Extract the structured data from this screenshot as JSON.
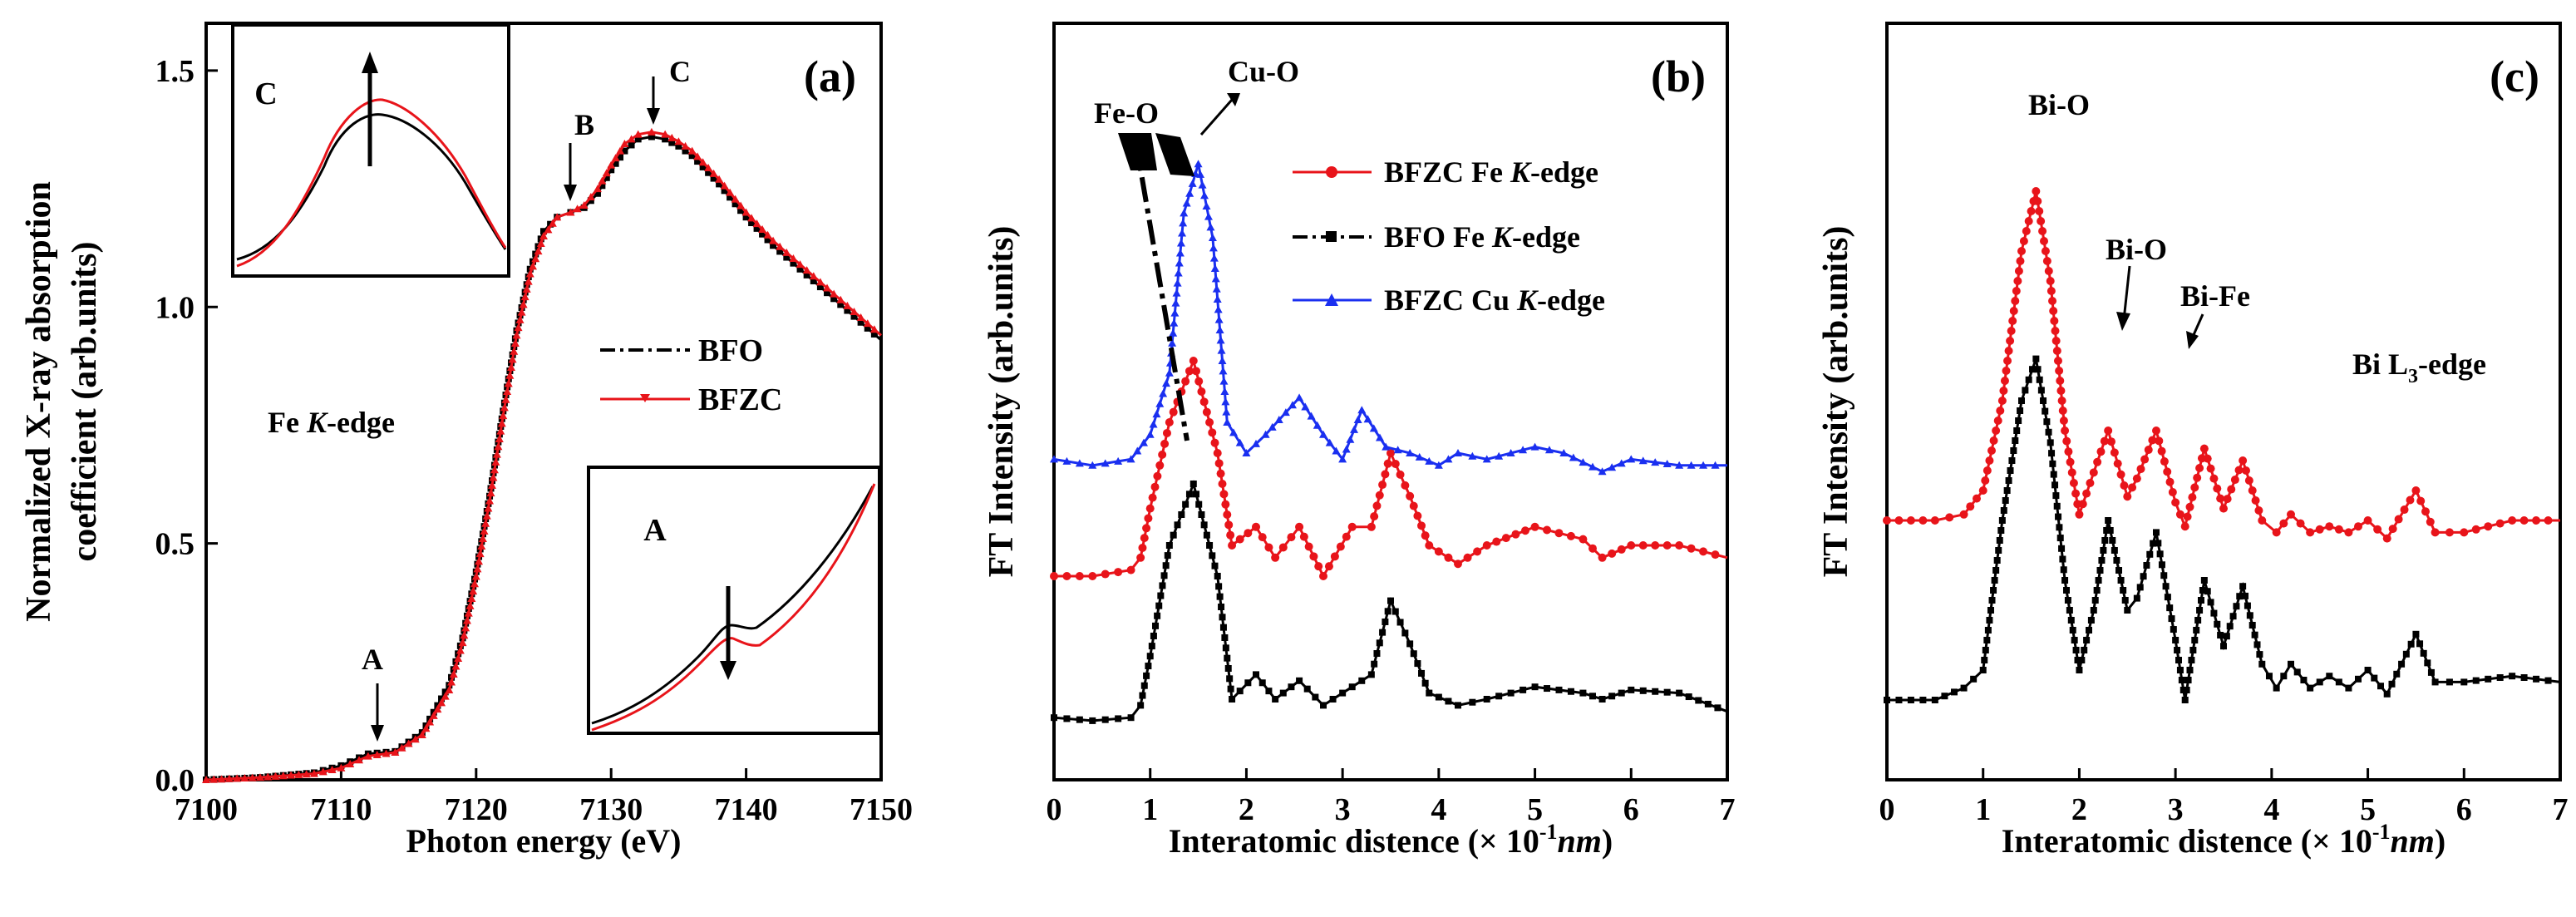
{
  "chart_data": [
    {
      "panel": "a",
      "type": "line",
      "panel_label": "(a)",
      "xlabel": "Photon energy (eV)",
      "ylabel_line1": "Normalized X-ray absorption",
      "ylabel_line2": "coefficient  (arb.units)",
      "xlim": [
        7100,
        7150
      ],
      "ylim": [
        0,
        1.6
      ],
      "xticks": [
        7100,
        7110,
        7120,
        7130,
        7140,
        7150
      ],
      "xtick_labels": [
        "7100",
        "7110",
        "7120",
        "7130",
        "7140",
        "7150"
      ],
      "yticks": [
        0,
        0.5,
        1.0,
        1.5
      ],
      "ytick_labels": [
        "0.0",
        "0.5",
        "1.0",
        "1.5"
      ],
      "edge_label": "Fe K-edge",
      "series": [
        {
          "name": "BFO",
          "color": "#000000",
          "x": [
            7100,
            7104,
            7108,
            7110,
            7112,
            7114,
            7116,
            7118,
            7119,
            7120,
            7121,
            7122,
            7123,
            7124,
            7125,
            7126,
            7127,
            7128,
            7129,
            7130,
            7131,
            7132,
            7133,
            7134,
            7135,
            7136,
            7138,
            7140,
            7142,
            7144,
            7146,
            7148,
            7150
          ],
          "y": [
            0.0,
            0.005,
            0.015,
            0.03,
            0.055,
            0.06,
            0.1,
            0.2,
            0.3,
            0.44,
            0.6,
            0.78,
            0.95,
            1.08,
            1.16,
            1.19,
            1.2,
            1.21,
            1.24,
            1.29,
            1.33,
            1.355,
            1.36,
            1.355,
            1.34,
            1.32,
            1.26,
            1.19,
            1.13,
            1.08,
            1.03,
            0.98,
            0.93
          ]
        },
        {
          "name": "BFZC",
          "color": "#e8141a",
          "x": [
            7100,
            7104,
            7108,
            7110,
            7112,
            7114,
            7116,
            7118,
            7119,
            7120,
            7121,
            7122,
            7123,
            7124,
            7125,
            7126,
            7127,
            7128,
            7129,
            7130,
            7131,
            7132,
            7133,
            7134,
            7135,
            7136,
            7138,
            7140,
            7142,
            7144,
            7146,
            7148,
            7150
          ],
          "y": [
            0.0,
            0.005,
            0.013,
            0.025,
            0.05,
            0.058,
            0.095,
            0.19,
            0.29,
            0.43,
            0.59,
            0.77,
            0.94,
            1.07,
            1.15,
            1.19,
            1.2,
            1.215,
            1.25,
            1.3,
            1.345,
            1.365,
            1.37,
            1.365,
            1.35,
            1.33,
            1.27,
            1.2,
            1.14,
            1.09,
            1.04,
            0.99,
            0.94
          ]
        }
      ],
      "annotations": [
        "A",
        "B",
        "C"
      ],
      "inset_labels": [
        "C",
        "A"
      ]
    },
    {
      "panel": "b",
      "type": "line",
      "panel_label": "(b)",
      "xlabel_prefix": "Interatomic distence (",
      "xlabel_unit": "× 10",
      "xlabel_exp": "-1",
      "xlabel_nm": "nm",
      "xlabel_suffix": ")",
      "ylabel": "FT Intensity (arb.units)",
      "xlim": [
        0,
        7
      ],
      "ylim": [
        0,
        1.0
      ],
      "xticks": [
        0,
        1,
        2,
        3,
        4,
        5,
        6,
        7
      ],
      "xtick_labels": [
        "0",
        "1",
        "2",
        "3",
        "4",
        "5",
        "6",
        "7"
      ],
      "series": [
        {
          "name": "BFZC  Fe  K-edge",
          "color": "#e8141a",
          "x": [
            0,
            0.4,
            0.8,
            0.9,
            1.0,
            1.2,
            1.45,
            1.7,
            1.85,
            2.1,
            2.3,
            2.55,
            2.8,
            3.1,
            3.3,
            3.5,
            3.7,
            3.9,
            4.2,
            4.5,
            5.0,
            5.5,
            5.7,
            6.0,
            6.5,
            7.0
          ],
          "y": [
            0.25,
            0.25,
            0.26,
            0.28,
            0.36,
            0.5,
            0.6,
            0.45,
            0.3,
            0.33,
            0.28,
            0.33,
            0.25,
            0.33,
            0.33,
            0.45,
            0.38,
            0.3,
            0.27,
            0.3,
            0.33,
            0.31,
            0.28,
            0.3,
            0.3,
            0.28
          ]
        },
        {
          "name": "BFO    Fe  K-edge",
          "color": "#000000",
          "x": [
            0,
            0.4,
            0.8,
            0.9,
            1.0,
            1.2,
            1.45,
            1.7,
            1.85,
            2.1,
            2.3,
            2.55,
            2.8,
            3.1,
            3.3,
            3.5,
            3.7,
            3.9,
            4.2,
            4.5,
            5.0,
            5.5,
            5.7,
            6.0,
            6.5,
            7.0
          ],
          "y": [
            0.02,
            0.015,
            0.02,
            0.04,
            0.12,
            0.3,
            0.4,
            0.25,
            0.05,
            0.09,
            0.05,
            0.08,
            0.04,
            0.07,
            0.09,
            0.21,
            0.14,
            0.06,
            0.04,
            0.05,
            0.07,
            0.06,
            0.05,
            0.065,
            0.06,
            0.03
          ]
        },
        {
          "name": "BFZC Cu  K-edge",
          "color": "#1a2ff0",
          "x": [
            0,
            0.4,
            0.8,
            1.0,
            1.2,
            1.35,
            1.5,
            1.65,
            1.8,
            2.0,
            2.2,
            2.55,
            2.8,
            3.0,
            3.2,
            3.45,
            3.7,
            4.0,
            4.2,
            4.5,
            5.0,
            5.3,
            5.7,
            6.0,
            6.5,
            7.0
          ],
          "y": [
            0.44,
            0.43,
            0.44,
            0.48,
            0.58,
            0.84,
            0.92,
            0.8,
            0.5,
            0.45,
            0.48,
            0.54,
            0.48,
            0.44,
            0.52,
            0.46,
            0.45,
            0.43,
            0.45,
            0.44,
            0.46,
            0.45,
            0.42,
            0.44,
            0.43,
            0.43
          ]
        }
      ],
      "annotations": [
        "Fe-O",
        "Cu-O"
      ],
      "legend": [
        "BFZC  Fe  K-edge",
        "BFO    Fe  K-edge",
        "BFZC Cu  K-edge"
      ]
    },
    {
      "panel": "c",
      "type": "line",
      "panel_label": "(c)",
      "xlabel_prefix": "Interatomic distence (",
      "xlabel_unit": "× 10",
      "xlabel_exp": "-1",
      "xlabel_nm": "nm",
      "xlabel_suffix": ")",
      "ylabel": "FT Intensity (arb.units)",
      "xlim": [
        0,
        7
      ],
      "ylim": [
        0,
        1.0
      ],
      "xticks": [
        0,
        1,
        2,
        3,
        4,
        5,
        6,
        7
      ],
      "xtick_labels": [
        "0",
        "1",
        "2",
        "3",
        "4",
        "5",
        "6",
        "7"
      ],
      "edge_label_main": "Bi  L",
      "edge_label_sub": "3",
      "edge_label_tail": "-edge",
      "series": [
        {
          "name": "Bi L3-edge upper",
          "color": "#e8141a",
          "x": [
            0,
            0.5,
            0.8,
            1.0,
            1.2,
            1.4,
            1.55,
            1.7,
            1.85,
            2.0,
            2.15,
            2.3,
            2.5,
            2.6,
            2.8,
            3.0,
            3.1,
            3.3,
            3.5,
            3.7,
            3.9,
            4.05,
            4.2,
            4.4,
            4.6,
            4.8,
            5.0,
            5.2,
            5.5,
            5.7,
            6.0,
            6.5,
            7.0
          ],
          "y": [
            0.35,
            0.35,
            0.36,
            0.4,
            0.55,
            0.8,
            0.9,
            0.75,
            0.5,
            0.36,
            0.43,
            0.5,
            0.39,
            0.42,
            0.5,
            0.38,
            0.34,
            0.47,
            0.37,
            0.45,
            0.35,
            0.33,
            0.36,
            0.33,
            0.34,
            0.33,
            0.35,
            0.32,
            0.4,
            0.33,
            0.33,
            0.35,
            0.35
          ]
        },
        {
          "name": "Bi L3-edge lower",
          "color": "#000000",
          "x": [
            0,
            0.5,
            0.8,
            1.0,
            1.2,
            1.4,
            1.55,
            1.7,
            1.85,
            2.0,
            2.15,
            2.3,
            2.5,
            2.6,
            2.8,
            3.0,
            3.1,
            3.3,
            3.5,
            3.7,
            3.9,
            4.05,
            4.2,
            4.4,
            4.6,
            4.8,
            5.0,
            5.2,
            5.5,
            5.7,
            6.0,
            6.5,
            7.0
          ],
          "y": [
            0.05,
            0.05,
            0.07,
            0.1,
            0.35,
            0.55,
            0.62,
            0.48,
            0.25,
            0.1,
            0.2,
            0.35,
            0.2,
            0.22,
            0.33,
            0.15,
            0.05,
            0.25,
            0.14,
            0.24,
            0.11,
            0.07,
            0.11,
            0.07,
            0.09,
            0.07,
            0.1,
            0.06,
            0.16,
            0.08,
            0.08,
            0.09,
            0.08
          ]
        }
      ],
      "annotations": [
        "Bi-O",
        "Bi-O",
        "Bi-Fe"
      ]
    }
  ],
  "legend_a": {
    "bfo": "BFO",
    "bfzc": "BFZC"
  },
  "edge_a": {
    "fe": "Fe ",
    "k": "K",
    "rest": "-edge"
  },
  "legend_b": [
    {
      "main": "BFZC  Fe  ",
      "k": "K",
      "rest": "-edge"
    },
    {
      "main": "BFO    Fe  ",
      "k": "K",
      "rest": "-edge"
    },
    {
      "main": "BFZC Cu  ",
      "k": "K",
      "rest": "-edge"
    }
  ]
}
